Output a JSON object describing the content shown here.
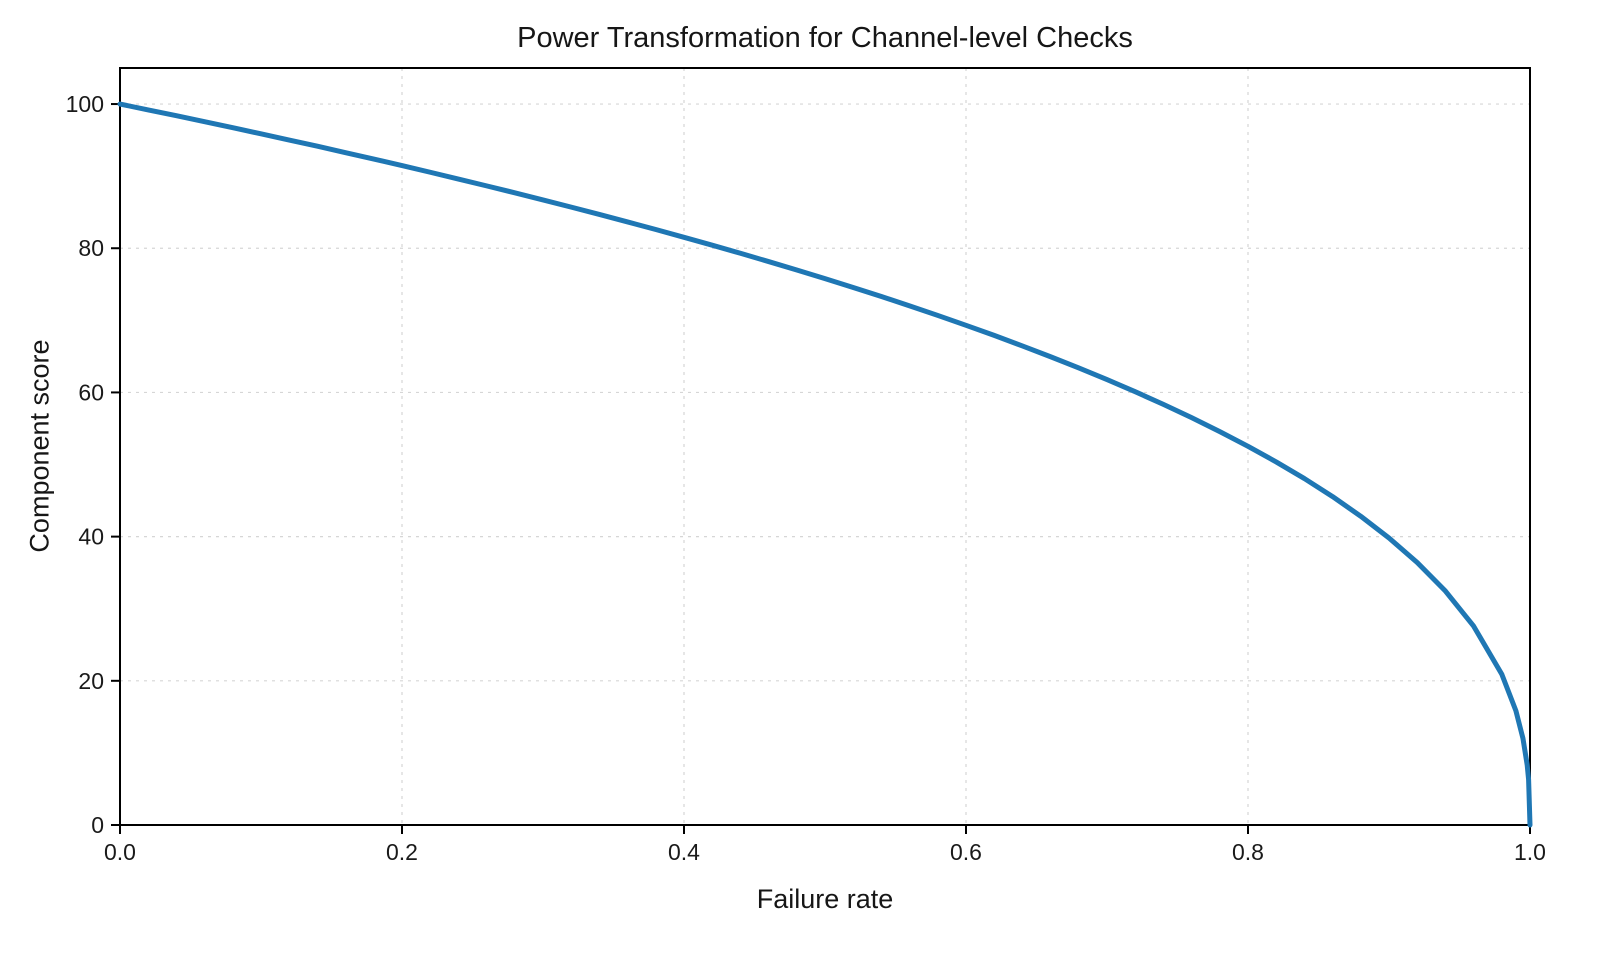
{
  "page": {
    "background": "#ffffff"
  },
  "chart_data": {
    "type": "line",
    "title": "Power Transformation for Channel-level Checks",
    "xlabel": "Failure rate",
    "ylabel": "Component score",
    "xlim": [
      0,
      1
    ],
    "ylim": [
      0,
      105
    ],
    "xticks": [
      0.0,
      0.2,
      0.4,
      0.6,
      0.8,
      1.0
    ],
    "xtick_labels": [
      "0.0",
      "0.2",
      "0.4",
      "0.6",
      "0.8",
      "1.0"
    ],
    "yticks": [
      0,
      20,
      40,
      60,
      80,
      100
    ],
    "ytick_labels": [
      "0",
      "20",
      "40",
      "60",
      "80",
      "100"
    ],
    "grid": true,
    "grid_style": "dashed",
    "legend": "none",
    "line_color": "#1f77b4",
    "line_width": 5,
    "series": [
      {
        "name": "Component score",
        "x": [
          0.0,
          0.02,
          0.04,
          0.06,
          0.08,
          0.1,
          0.12,
          0.14,
          0.16,
          0.18,
          0.2,
          0.22,
          0.24,
          0.26,
          0.28,
          0.3,
          0.32,
          0.34,
          0.36,
          0.38,
          0.4,
          0.42,
          0.44,
          0.46,
          0.48,
          0.5,
          0.52,
          0.54,
          0.56,
          0.58,
          0.6,
          0.62,
          0.64,
          0.66,
          0.68,
          0.7,
          0.72,
          0.74,
          0.76,
          0.78,
          0.8,
          0.82,
          0.84,
          0.86,
          0.88,
          0.9,
          0.92,
          0.94,
          0.96,
          0.98,
          0.99,
          0.995,
          0.998,
          0.999,
          1.0
        ],
        "y": [
          100.0,
          99.19,
          98.38,
          97.55,
          96.72,
          95.87,
          95.01,
          94.15,
          93.26,
          92.37,
          91.46,
          90.54,
          89.6,
          88.65,
          87.69,
          86.7,
          85.7,
          84.69,
          83.65,
          82.6,
          81.52,
          80.42,
          79.3,
          78.15,
          76.98,
          75.79,
          74.56,
          73.3,
          72.01,
          70.68,
          69.31,
          67.91,
          66.45,
          64.95,
          63.4,
          61.78,
          60.1,
          58.34,
          56.5,
          54.57,
          52.53,
          50.36,
          48.05,
          45.55,
          42.82,
          39.81,
          36.41,
          32.45,
          27.59,
          20.91,
          15.85,
          12.01,
          8.33,
          6.31,
          0.0
        ]
      }
    ]
  }
}
